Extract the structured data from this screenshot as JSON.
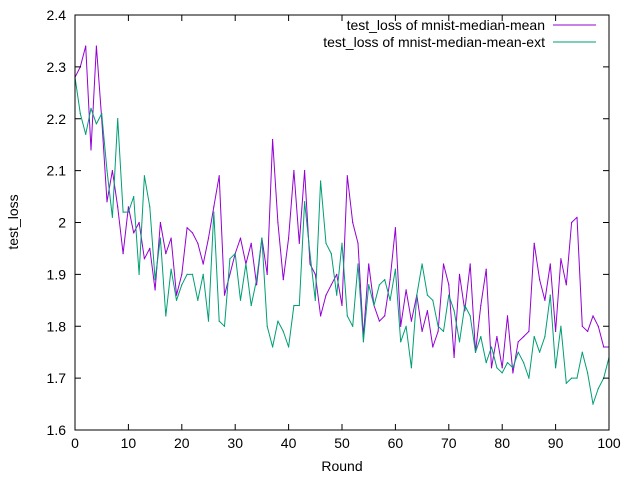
{
  "chart_data": {
    "type": "line",
    "title": "",
    "xlabel": "Round",
    "ylabel": "test_loss",
    "xlim": [
      0,
      100
    ],
    "ylim": [
      1.6,
      2.4
    ],
    "xticks": [
      0,
      10,
      20,
      30,
      40,
      50,
      60,
      70,
      80,
      90,
      100
    ],
    "yticks": [
      1.6,
      1.7,
      1.8,
      1.9,
      2.0,
      2.1,
      2.2,
      2.3,
      2.4
    ],
    "xtick_labels": [
      "0",
      "10",
      "20",
      "30",
      "40",
      "50",
      "60",
      "70",
      "80",
      "90",
      "100"
    ],
    "ytick_labels": [
      "1.6",
      "1.7",
      "1.8",
      "1.9",
      "2",
      "2.1",
      "2.2",
      "2.3",
      "2.4"
    ],
    "grid": false,
    "legend_position": "top-right",
    "series": [
      {
        "name": "test_loss of mnist-median-mean",
        "color": "#9400d3",
        "x": [
          0,
          1,
          2,
          3,
          4,
          5,
          6,
          7,
          8,
          9,
          10,
          11,
          12,
          13,
          14,
          15,
          16,
          17,
          18,
          19,
          20,
          21,
          22,
          23,
          24,
          25,
          26,
          27,
          28,
          29,
          30,
          31,
          32,
          33,
          34,
          35,
          36,
          37,
          38,
          39,
          40,
          41,
          42,
          43,
          44,
          45,
          46,
          47,
          48,
          49,
          50,
          51,
          52,
          53,
          54,
          55,
          56,
          57,
          58,
          59,
          60,
          61,
          62,
          63,
          64,
          65,
          66,
          67,
          68,
          69,
          70,
          71,
          72,
          73,
          74,
          75,
          76,
          77,
          78,
          79,
          80,
          81,
          82,
          83,
          84,
          85,
          86,
          87,
          88,
          89,
          90,
          91,
          92,
          93,
          94,
          95,
          96,
          97,
          98,
          99,
          100
        ],
        "values": [
          2.28,
          2.3,
          2.34,
          2.14,
          2.34,
          2.2,
          2.04,
          2.1,
          2.03,
          1.94,
          2.03,
          1.98,
          2.0,
          1.93,
          1.95,
          1.87,
          2.0,
          1.94,
          1.97,
          1.86,
          1.9,
          1.99,
          1.98,
          1.96,
          1.92,
          1.97,
          2.03,
          2.09,
          1.86,
          1.9,
          1.94,
          1.97,
          1.92,
          1.96,
          1.88,
          1.97,
          1.9,
          2.16,
          2.0,
          1.89,
          1.97,
          2.1,
          1.96,
          2.1,
          1.92,
          1.9,
          1.82,
          1.86,
          1.88,
          1.9,
          1.84,
          2.09,
          2.0,
          1.96,
          1.78,
          1.92,
          1.84,
          1.81,
          1.82,
          1.89,
          1.99,
          1.8,
          1.87,
          1.81,
          1.86,
          1.79,
          1.83,
          1.76,
          1.79,
          1.92,
          1.88,
          1.74,
          1.9,
          1.83,
          1.92,
          1.75,
          1.84,
          1.91,
          1.72,
          1.78,
          1.72,
          1.82,
          1.71,
          1.77,
          1.78,
          1.79,
          1.96,
          1.89,
          1.85,
          1.92,
          1.79,
          1.93,
          1.88,
          2.0,
          2.01,
          1.8,
          1.79,
          1.82,
          1.8,
          1.76,
          1.76
        ]
      },
      {
        "name": "test_loss of mnist-median-mean-ext",
        "color": "#009e73",
        "x": [
          0,
          1,
          2,
          3,
          4,
          5,
          6,
          7,
          8,
          9,
          10,
          11,
          12,
          13,
          14,
          15,
          16,
          17,
          18,
          19,
          20,
          21,
          22,
          23,
          24,
          25,
          26,
          27,
          28,
          29,
          30,
          31,
          32,
          33,
          34,
          35,
          36,
          37,
          38,
          39,
          40,
          41,
          42,
          43,
          44,
          45,
          46,
          47,
          48,
          49,
          50,
          51,
          52,
          53,
          54,
          55,
          56,
          57,
          58,
          59,
          60,
          61,
          62,
          63,
          64,
          65,
          66,
          67,
          68,
          69,
          70,
          71,
          72,
          73,
          74,
          75,
          76,
          77,
          78,
          79,
          80,
          81,
          82,
          83,
          84,
          85,
          86,
          87,
          88,
          89,
          90,
          91,
          92,
          93,
          94,
          95,
          96,
          97,
          98,
          99,
          100
        ],
        "values": [
          2.28,
          2.21,
          2.17,
          2.22,
          2.19,
          2.21,
          2.1,
          2.01,
          2.2,
          2.02,
          2.02,
          2.05,
          1.9,
          2.09,
          2.03,
          1.89,
          1.97,
          1.82,
          1.91,
          1.85,
          1.88,
          1.9,
          1.9,
          1.85,
          1.9,
          1.81,
          2.02,
          1.81,
          1.8,
          1.93,
          1.94,
          1.85,
          1.92,
          1.84,
          1.89,
          1.97,
          1.8,
          1.76,
          1.81,
          1.79,
          1.76,
          1.84,
          1.84,
          2.04,
          1.94,
          1.85,
          2.08,
          1.96,
          1.94,
          1.86,
          1.96,
          1.82,
          1.8,
          1.92,
          1.77,
          1.88,
          1.84,
          1.88,
          1.89,
          1.85,
          1.91,
          1.77,
          1.8,
          1.72,
          1.86,
          1.92,
          1.86,
          1.85,
          1.8,
          1.79,
          1.86,
          1.83,
          1.77,
          1.84,
          1.82,
          1.75,
          1.78,
          1.73,
          1.76,
          1.72,
          1.71,
          1.73,
          1.72,
          1.75,
          1.73,
          1.7,
          1.78,
          1.75,
          1.78,
          1.86,
          1.72,
          1.8,
          1.69,
          1.7,
          1.7,
          1.75,
          1.71,
          1.65,
          1.68,
          1.7,
          1.74
        ]
      }
    ]
  }
}
